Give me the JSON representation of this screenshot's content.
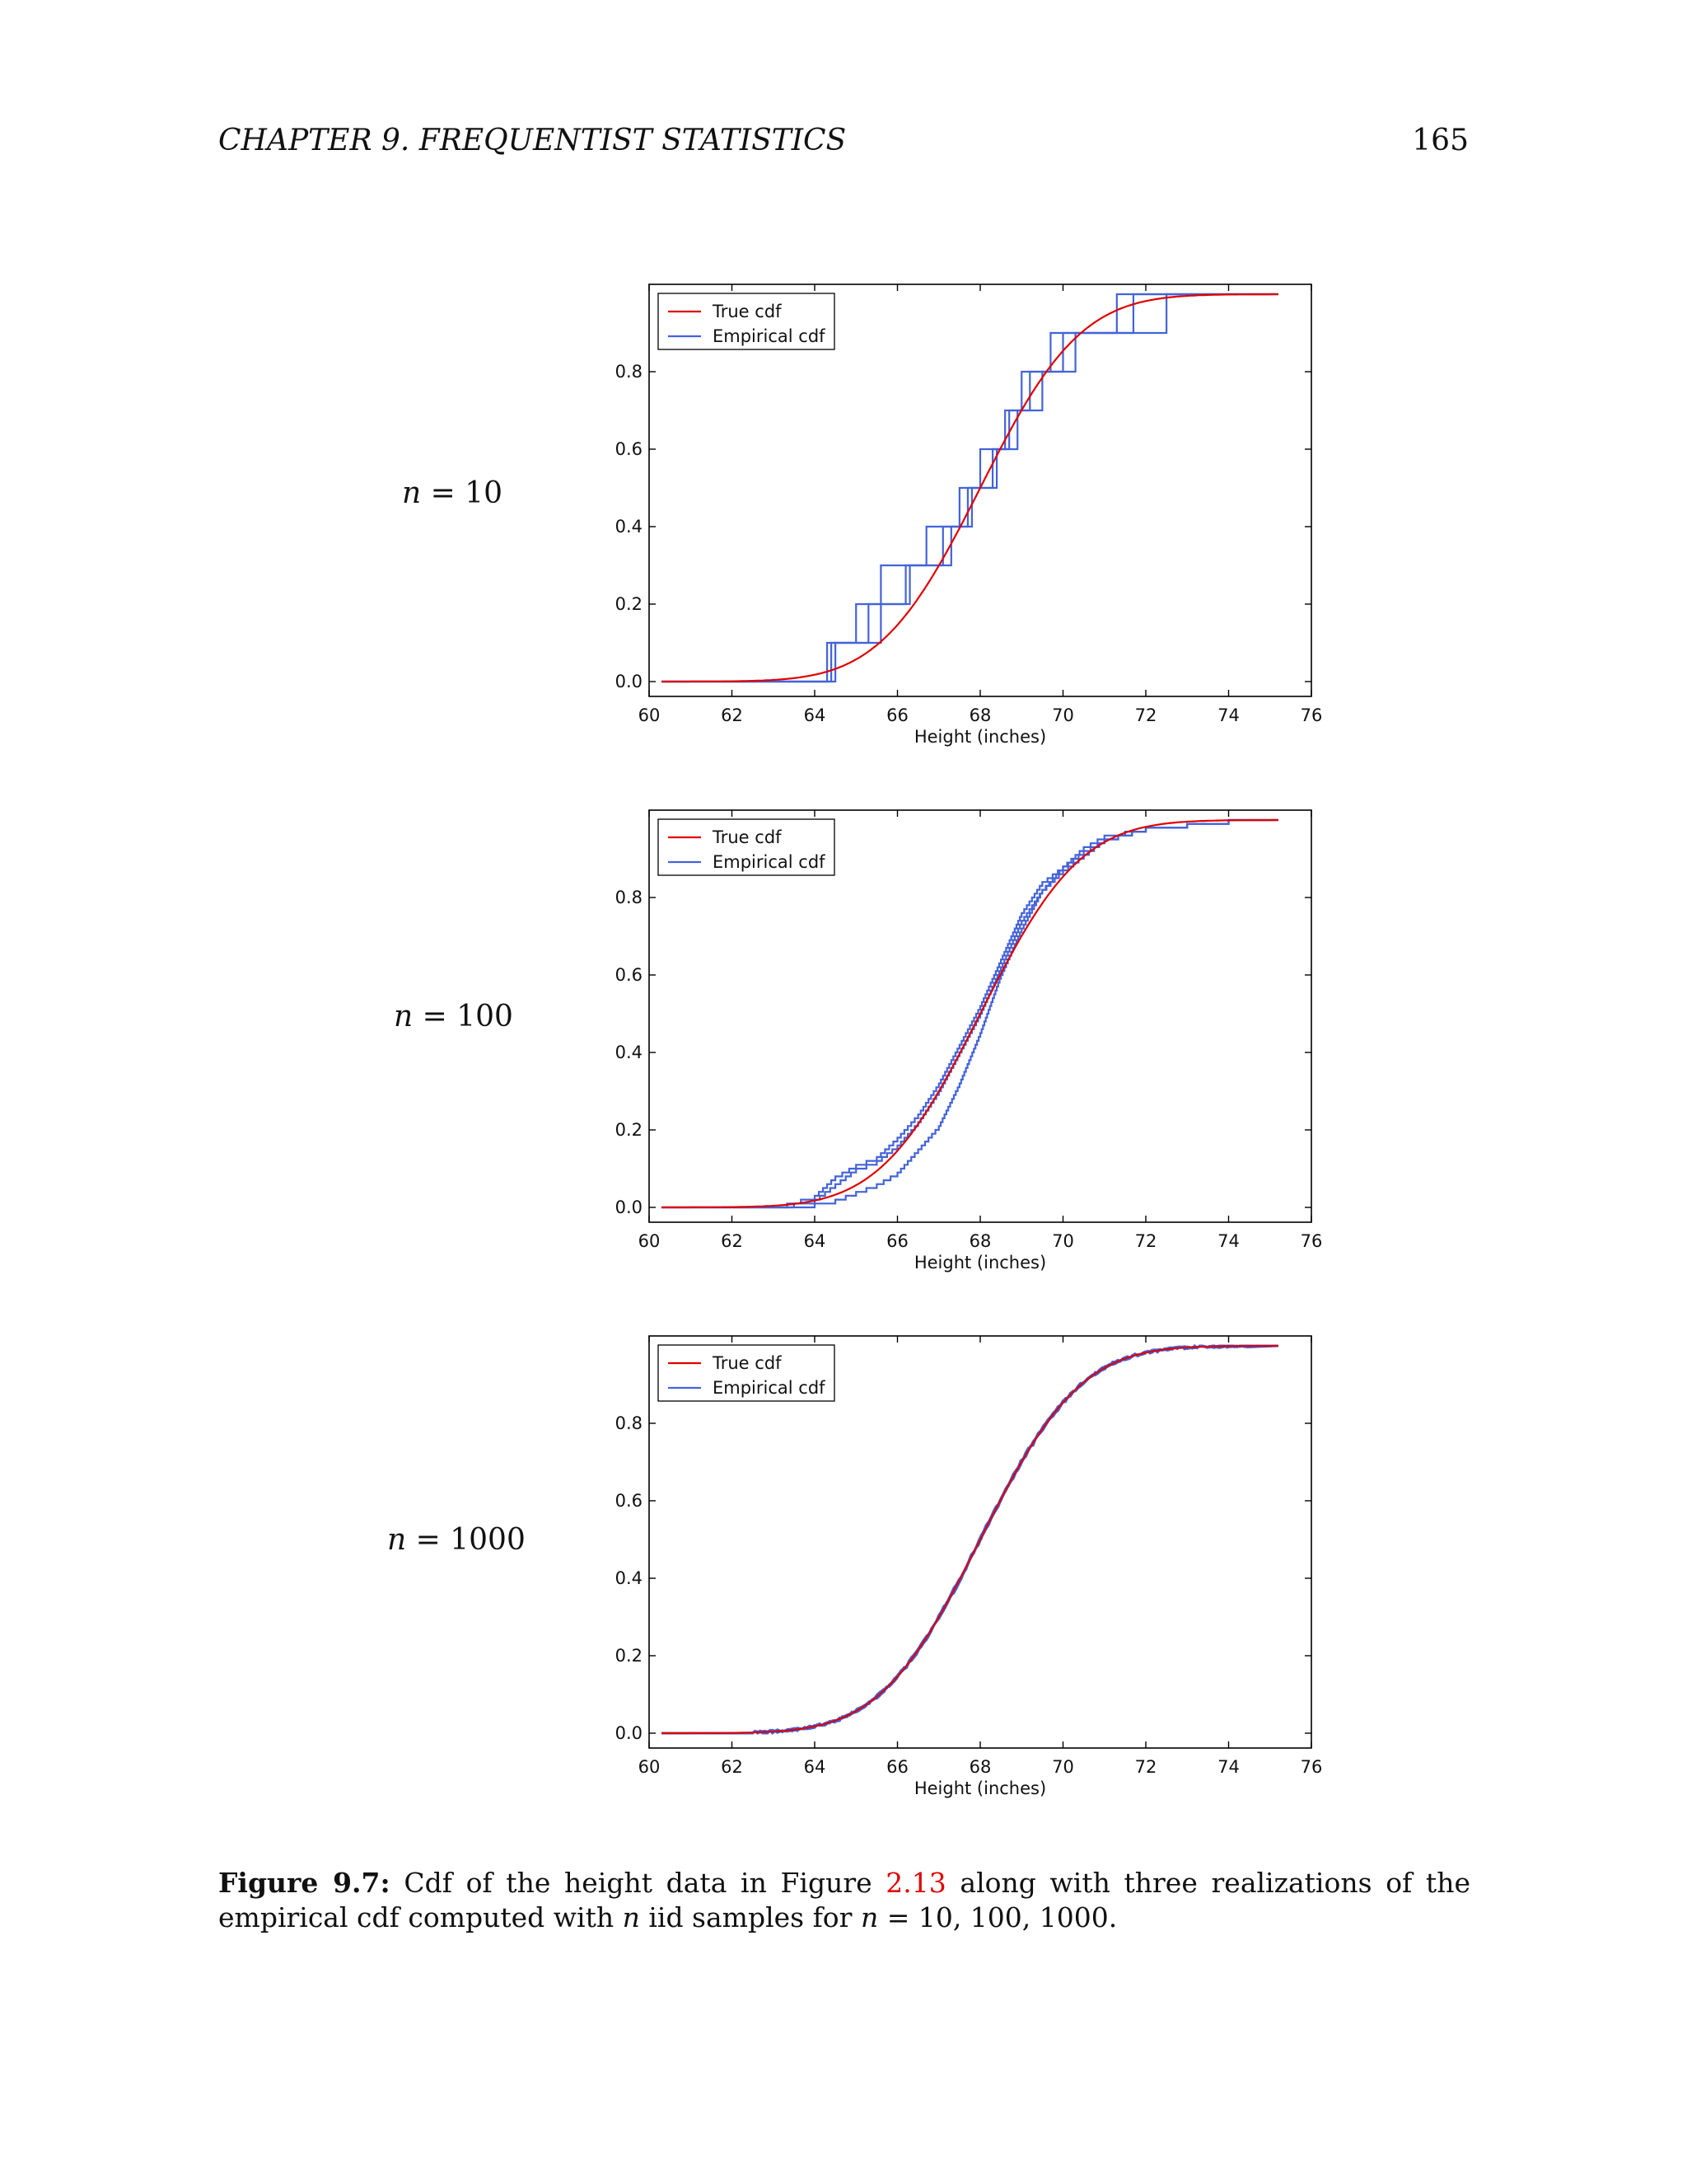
{
  "page": {
    "running_head": "CHAPTER 9.   FREQUENTIST STATISTICS",
    "page_number": "165"
  },
  "panel_labels": [
    {
      "var": "n",
      "eq": " = ",
      "value": "10"
    },
    {
      "var": "n",
      "eq": " = ",
      "value": "100"
    },
    {
      "var": "n",
      "eq": " = ",
      "value": "1000"
    }
  ],
  "caption": {
    "label": "Figure 9.7:",
    "text_1": " Cdf of the height data in Figure ",
    "ref": "2.13",
    "text_2": " along with three realizations of the empirical cdf computed with ",
    "var_n": "n",
    "text_3": " iid samples for ",
    "var_n2": "n",
    "text_4": " = 10, 100, 1000."
  },
  "colors": {
    "true_cdf": "#e00000",
    "empirical_cdf": "#4363d8",
    "axes": "#000000"
  },
  "chart_data": [
    {
      "type": "line",
      "title": "",
      "xlabel": "Height (inches)",
      "ylabel": "",
      "xlim": [
        60,
        76
      ],
      "ylim": [
        0.0,
        1.0
      ],
      "xticks": [
        "60",
        "62",
        "64",
        "66",
        "68",
        "70",
        "72",
        "74",
        "76"
      ],
      "yticks": [
        "0.0",
        "0.2",
        "0.4",
        "0.6",
        "0.8"
      ],
      "legend": {
        "placement": "top-left",
        "entries": [
          "True cdf",
          "Empirical cdf"
        ]
      },
      "true_cdf": {
        "mean": 68.0,
        "sd": 1.9
      },
      "empirical": [
        [
          64.3,
          65.0,
          65.6,
          66.7,
          67.7,
          68.4,
          68.7,
          69.0,
          69.7,
          71.7
        ],
        [
          64.4,
          65.3,
          66.3,
          67.3,
          67.8,
          68.3,
          68.6,
          69.5,
          70.0,
          72.5
        ],
        [
          64.5,
          65.6,
          66.2,
          67.1,
          67.5,
          68.0,
          68.9,
          69.2,
          70.3,
          71.3
        ]
      ]
    },
    {
      "type": "line",
      "title": "",
      "xlabel": "Height (inches)",
      "ylabel": "",
      "xlim": [
        60,
        76
      ],
      "ylim": [
        0.0,
        1.0
      ],
      "xticks": [
        "60",
        "62",
        "64",
        "66",
        "68",
        "70",
        "72",
        "74",
        "76"
      ],
      "yticks": [
        "0.0",
        "0.2",
        "0.4",
        "0.6",
        "0.8"
      ],
      "legend": {
        "placement": "top-left",
        "entries": [
          "True cdf",
          "Empirical cdf"
        ]
      },
      "true_cdf": {
        "mean": 68.0,
        "sd": 1.9
      },
      "empirical_curves": [
        {
          "n": 100,
          "x": [
            63.0,
            64.0,
            64.5,
            65.0,
            65.5,
            66.0,
            66.5,
            67.0,
            67.5,
            68.0,
            68.5,
            69.0,
            69.5,
            70.0,
            70.5,
            71.0,
            72.0,
            73.0,
            74.0
          ],
          "y": [
            0.0,
            0.03,
            0.08,
            0.11,
            0.13,
            0.18,
            0.24,
            0.32,
            0.42,
            0.52,
            0.64,
            0.76,
            0.84,
            0.88,
            0.92,
            0.95,
            0.98,
            0.99,
            1.0
          ]
        },
        {
          "n": 100,
          "x": [
            63.0,
            64.0,
            64.5,
            65.0,
            65.5,
            66.0,
            66.5,
            67.0,
            67.5,
            68.0,
            68.5,
            69.0,
            69.5,
            70.0,
            70.5,
            71.0,
            72.0,
            73.0,
            74.0
          ],
          "y": [
            0.0,
            0.02,
            0.06,
            0.1,
            0.12,
            0.16,
            0.22,
            0.3,
            0.4,
            0.5,
            0.62,
            0.74,
            0.82,
            0.87,
            0.91,
            0.95,
            0.98,
            0.99,
            1.0
          ]
        },
        {
          "n": 100,
          "x": [
            63.0,
            64.0,
            64.5,
            65.0,
            65.5,
            66.0,
            66.5,
            67.0,
            67.5,
            68.0,
            68.5,
            69.0,
            69.5,
            70.0,
            70.5,
            71.0,
            72.0,
            73.0,
            74.0
          ],
          "y": [
            0.0,
            0.01,
            0.02,
            0.04,
            0.06,
            0.09,
            0.15,
            0.21,
            0.32,
            0.45,
            0.6,
            0.72,
            0.82,
            0.88,
            0.93,
            0.96,
            0.98,
            0.99,
            1.0
          ]
        }
      ]
    },
    {
      "type": "line",
      "title": "",
      "xlabel": "Height (inches)",
      "ylabel": "",
      "xlim": [
        60,
        76
      ],
      "ylim": [
        0.0,
        1.0
      ],
      "xticks": [
        "60",
        "62",
        "64",
        "66",
        "68",
        "70",
        "72",
        "74",
        "76"
      ],
      "yticks": [
        "0.0",
        "0.2",
        "0.4",
        "0.6",
        "0.8"
      ],
      "legend": {
        "placement": "top-left",
        "entries": [
          "True cdf",
          "Empirical cdf"
        ]
      },
      "true_cdf": {
        "mean": 68.0,
        "sd": 1.9
      },
      "empirical_offsets": [
        0.0,
        0.08,
        -0.08
      ]
    }
  ]
}
